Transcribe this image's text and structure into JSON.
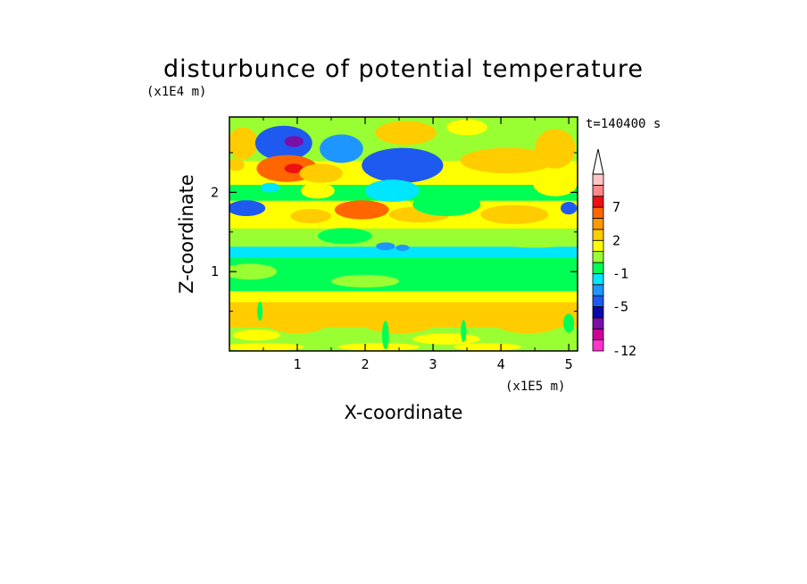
{
  "chart_data": {
    "type": "heatmap",
    "title": "disturbunce of potential temperature",
    "xlabel": "X-coordinate",
    "ylabel": "Z-coordinate",
    "x_unit": "(x1E5 m)",
    "y_unit": "(x1E4 m)",
    "time_label": "t=140400 s",
    "xlim": [
      0,
      5.13
    ],
    "ylim": [
      0,
      2.95
    ],
    "x_ticks": [
      "1",
      "2",
      "3",
      "4",
      "5"
    ],
    "y_ticks": [
      "1",
      "2"
    ],
    "colorbar": {
      "levels": [
        -12,
        -10,
        -8,
        -7,
        -5,
        -4,
        -3,
        -1,
        0,
        1,
        2,
        4,
        5,
        7,
        8,
        10
      ],
      "tick_labels": [
        "-12",
        "-5",
        "-1",
        "2",
        "7"
      ],
      "colors": [
        "#ff33cc",
        "#cc0099",
        "#7a10a8",
        "#0a0aa8",
        "#1e5af0",
        "#1e96ff",
        "#00e6ff",
        "#00ff55",
        "#99ff33",
        "#ffff00",
        "#ffcc00",
        "#ff9900",
        "#ff6600",
        "#ee1111",
        "#ff8888",
        "#ffc4c4"
      ],
      "extend_max": true
    },
    "bands": [
      {
        "z0": 0.0,
        "z1": 0.12,
        "value": 0.5
      },
      {
        "z0": 0.12,
        "z1": 0.3,
        "value": 0.5
      },
      {
        "z0": 0.3,
        "z1": 0.62,
        "value": 2.5
      },
      {
        "z0": 0.62,
        "z1": 0.76,
        "value": 1.2
      },
      {
        "z0": 0.76,
        "z1": 0.95,
        "value": -0.5
      },
      {
        "z0": 0.95,
        "z1": 1.18,
        "value": -0.6
      },
      {
        "z0": 1.18,
        "z1": 1.32,
        "value": -1.5
      },
      {
        "z0": 1.32,
        "z1": 1.55,
        "value": 0.5
      },
      {
        "z0": 1.55,
        "z1": 1.9,
        "value": 1.3
      },
      {
        "z0": 1.9,
        "z1": 2.1,
        "value": -0.4
      },
      {
        "z0": 2.1,
        "z1": 2.4,
        "value": 1.0
      },
      {
        "z0": 2.4,
        "z1": 2.95,
        "value": 0.2
      }
    ],
    "features": [
      {
        "x": 0.2,
        "z": 2.62,
        "rx": 0.22,
        "rz": 0.2,
        "value": 3.5
      },
      {
        "x": 0.8,
        "z": 2.62,
        "rx": 0.42,
        "rz": 0.22,
        "value": -4.5
      },
      {
        "x": 0.95,
        "z": 2.64,
        "rx": 0.14,
        "rz": 0.07,
        "value": -7.5
      },
      {
        "x": 1.65,
        "z": 2.55,
        "rx": 0.32,
        "rz": 0.18,
        "value": -3.5
      },
      {
        "x": 0.85,
        "z": 2.3,
        "rx": 0.45,
        "rz": 0.17,
        "value": 5.5
      },
      {
        "x": 0.95,
        "z": 2.3,
        "rx": 0.14,
        "rz": 0.06,
        "value": 7.5
      },
      {
        "x": 1.35,
        "z": 2.24,
        "rx": 0.32,
        "rz": 0.12,
        "value": 3.5
      },
      {
        "x": 2.55,
        "z": 2.34,
        "rx": 0.6,
        "rz": 0.22,
        "value": -4.5
      },
      {
        "x": 2.4,
        "z": 2.02,
        "rx": 0.4,
        "rz": 0.14,
        "value": -2.5
      },
      {
        "x": 2.6,
        "z": 2.75,
        "rx": 0.45,
        "rz": 0.15,
        "value": 2.5
      },
      {
        "x": 3.5,
        "z": 2.82,
        "rx": 0.3,
        "rz": 0.1,
        "value": 1.2
      },
      {
        "x": 4.1,
        "z": 2.4,
        "rx": 0.7,
        "rz": 0.16,
        "value": 2.5
      },
      {
        "x": 4.8,
        "z": 2.55,
        "rx": 0.3,
        "rz": 0.25,
        "value": 3.2
      },
      {
        "x": 4.8,
        "z": 2.1,
        "rx": 0.32,
        "rz": 0.15,
        "value": 1.2
      },
      {
        "x": 0.1,
        "z": 2.35,
        "rx": 0.12,
        "rz": 0.08,
        "value": 3.5
      },
      {
        "x": 0.25,
        "z": 1.8,
        "rx": 0.28,
        "rz": 0.1,
        "value": -4.5
      },
      {
        "x": 0.6,
        "z": 2.06,
        "rx": 0.14,
        "rz": 0.06,
        "value": -2.5
      },
      {
        "x": 1.3,
        "z": 2.02,
        "rx": 0.25,
        "rz": 0.1,
        "value": 1.2
      },
      {
        "x": 1.95,
        "z": 1.78,
        "rx": 0.4,
        "rz": 0.12,
        "value": 5.5
      },
      {
        "x": 1.2,
        "z": 1.7,
        "rx": 0.3,
        "rz": 0.09,
        "value": 2.5
      },
      {
        "x": 2.8,
        "z": 1.72,
        "rx": 0.45,
        "rz": 0.1,
        "value": 2.5
      },
      {
        "x": 3.2,
        "z": 1.85,
        "rx": 0.5,
        "rz": 0.15,
        "value": -0.5
      },
      {
        "x": 4.2,
        "z": 1.72,
        "rx": 0.5,
        "rz": 0.12,
        "value": 2.2
      },
      {
        "x": 5.0,
        "z": 1.8,
        "rx": 0.12,
        "rz": 0.08,
        "value": -4.5
      },
      {
        "x": 1.7,
        "z": 1.45,
        "rx": 0.4,
        "rz": 0.1,
        "value": -0.5
      },
      {
        "x": 2.3,
        "z": 1.32,
        "rx": 0.14,
        "rz": 0.05,
        "value": -3.5
      },
      {
        "x": 2.55,
        "z": 1.3,
        "rx": 0.1,
        "rz": 0.04,
        "value": -3.5
      },
      {
        "x": 4.5,
        "z": 1.4,
        "rx": 0.6,
        "rz": 0.1,
        "value": 0.5
      },
      {
        "x": 0.3,
        "z": 1.0,
        "rx": 0.4,
        "rz": 0.1,
        "value": 0.5
      },
      {
        "x": 2.0,
        "z": 0.88,
        "rx": 0.5,
        "rz": 0.08,
        "value": 0.5
      },
      {
        "x": 1.0,
        "z": 0.4,
        "rx": 0.5,
        "rz": 0.18,
        "value": 3.2
      },
      {
        "x": 2.5,
        "z": 0.4,
        "rx": 0.6,
        "rz": 0.18,
        "value": 3.2
      },
      {
        "x": 4.4,
        "z": 0.4,
        "rx": 0.55,
        "rz": 0.18,
        "value": 3.2
      },
      {
        "x": 0.4,
        "z": 0.2,
        "rx": 0.35,
        "rz": 0.07,
        "value": 1.2
      },
      {
        "x": 3.2,
        "z": 0.15,
        "rx": 0.5,
        "rz": 0.07,
        "value": 1.2
      },
      {
        "x": 0.5,
        "z": 0.05,
        "rx": 0.6,
        "rz": 0.05,
        "value": 1.2
      },
      {
        "x": 2.2,
        "z": 0.05,
        "rx": 0.6,
        "rz": 0.05,
        "value": 1.2
      },
      {
        "x": 3.8,
        "z": 0.05,
        "rx": 0.5,
        "rz": 0.05,
        "value": 1.2
      },
      {
        "x": 2.3,
        "z": 0.2,
        "rx": 0.05,
        "rz": 0.18,
        "value": -0.5
      },
      {
        "x": 3.45,
        "z": 0.25,
        "rx": 0.04,
        "rz": 0.14,
        "value": -0.5
      },
      {
        "x": 0.45,
        "z": 0.5,
        "rx": 0.04,
        "rz": 0.12,
        "value": -0.5
      },
      {
        "x": 5.0,
        "z": 0.35,
        "rx": 0.08,
        "rz": 0.12,
        "value": -0.5
      }
    ]
  }
}
